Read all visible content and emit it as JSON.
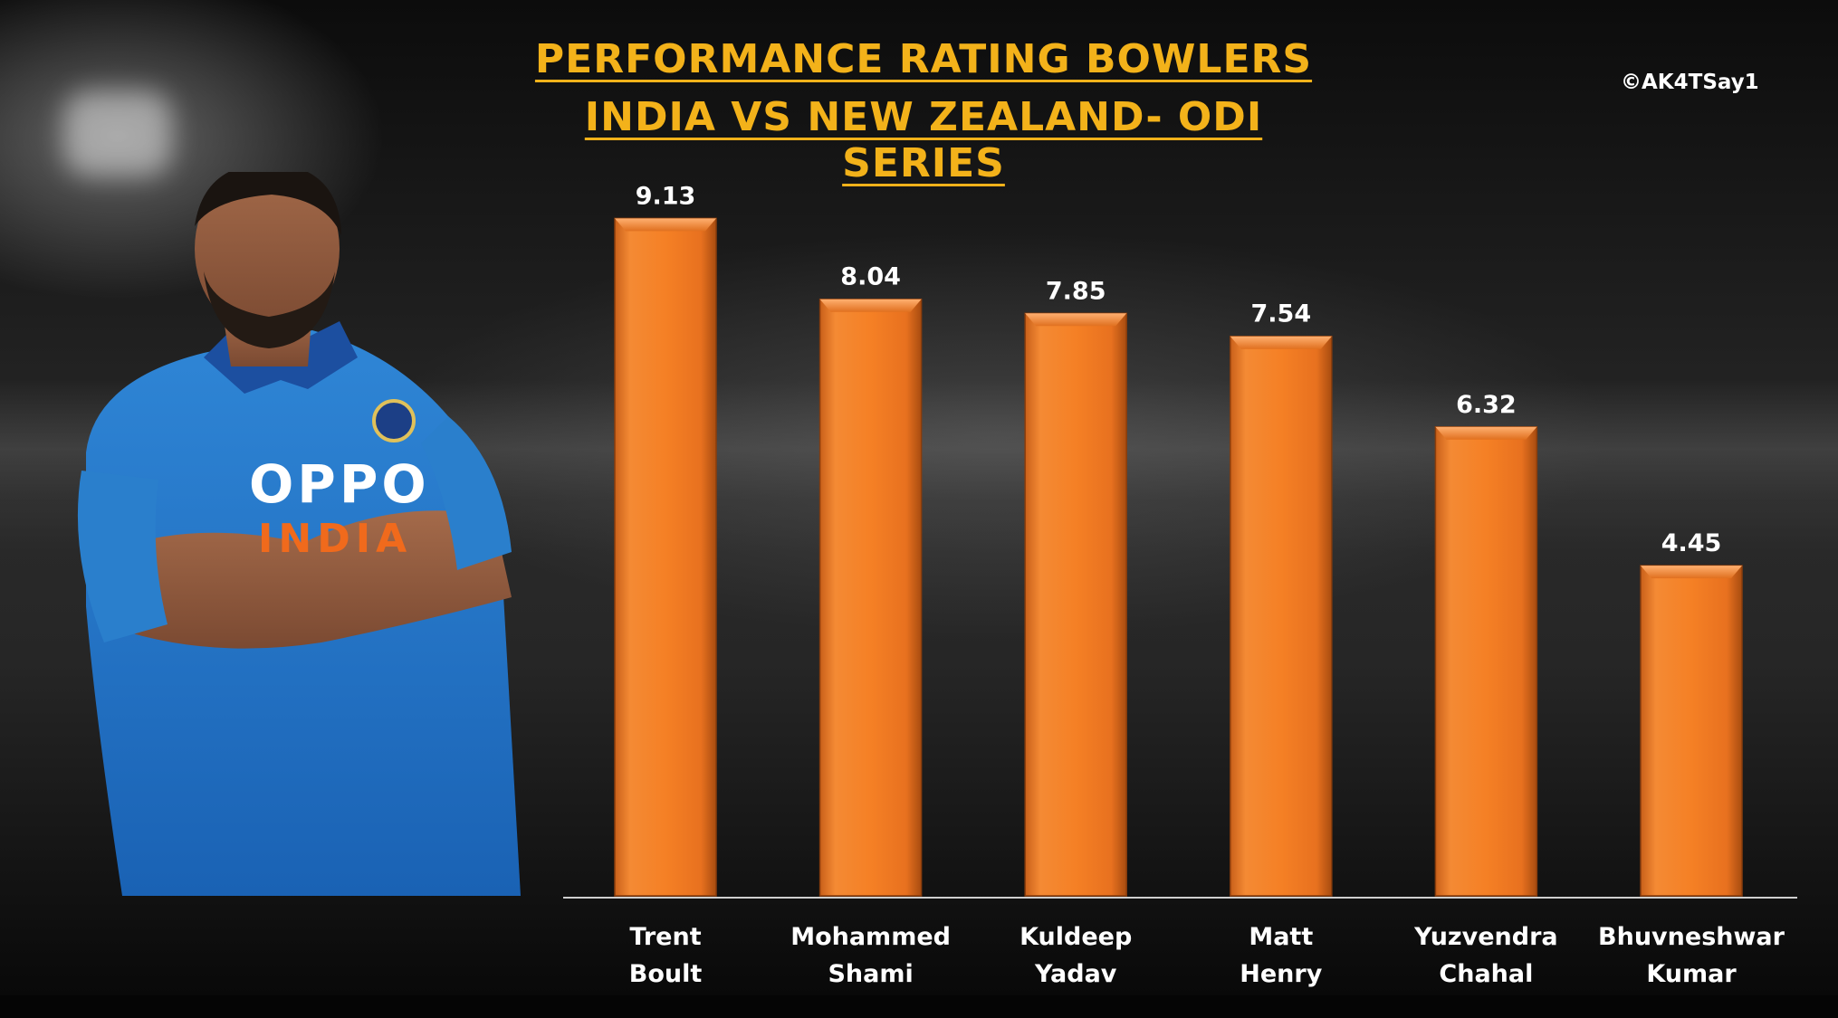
{
  "title": "PERFORMANCE RATING BOWLERS",
  "subtitle": "INDIA VS NEW ZEALAND- ODI SERIES",
  "credit": "©AK4TSay1",
  "colors": {
    "title": "#f3b21a",
    "bar": "#f07a22",
    "bar_dark": "#b85412",
    "text": "#ffffff"
  },
  "photo": {
    "sponsor": "OPPO",
    "team": "INDIA"
  },
  "chart_data": {
    "type": "bar",
    "categories": [
      [
        "Trent",
        "Boult"
      ],
      [
        "Mohammed",
        "Shami"
      ],
      [
        "Kuldeep",
        "Yadav"
      ],
      [
        "Matt",
        "Henry"
      ],
      [
        "Yuzvendra",
        "Chahal"
      ],
      [
        "Bhuvneshwar",
        "Kumar"
      ]
    ],
    "values": [
      9.13,
      8.04,
      7.85,
      7.54,
      6.32,
      4.45
    ],
    "value_labels": [
      "9.13",
      "8.04",
      "7.85",
      "7.54",
      "6.32",
      "4.45"
    ],
    "ylim": [
      0,
      10
    ],
    "grid": false,
    "legend": "none"
  }
}
